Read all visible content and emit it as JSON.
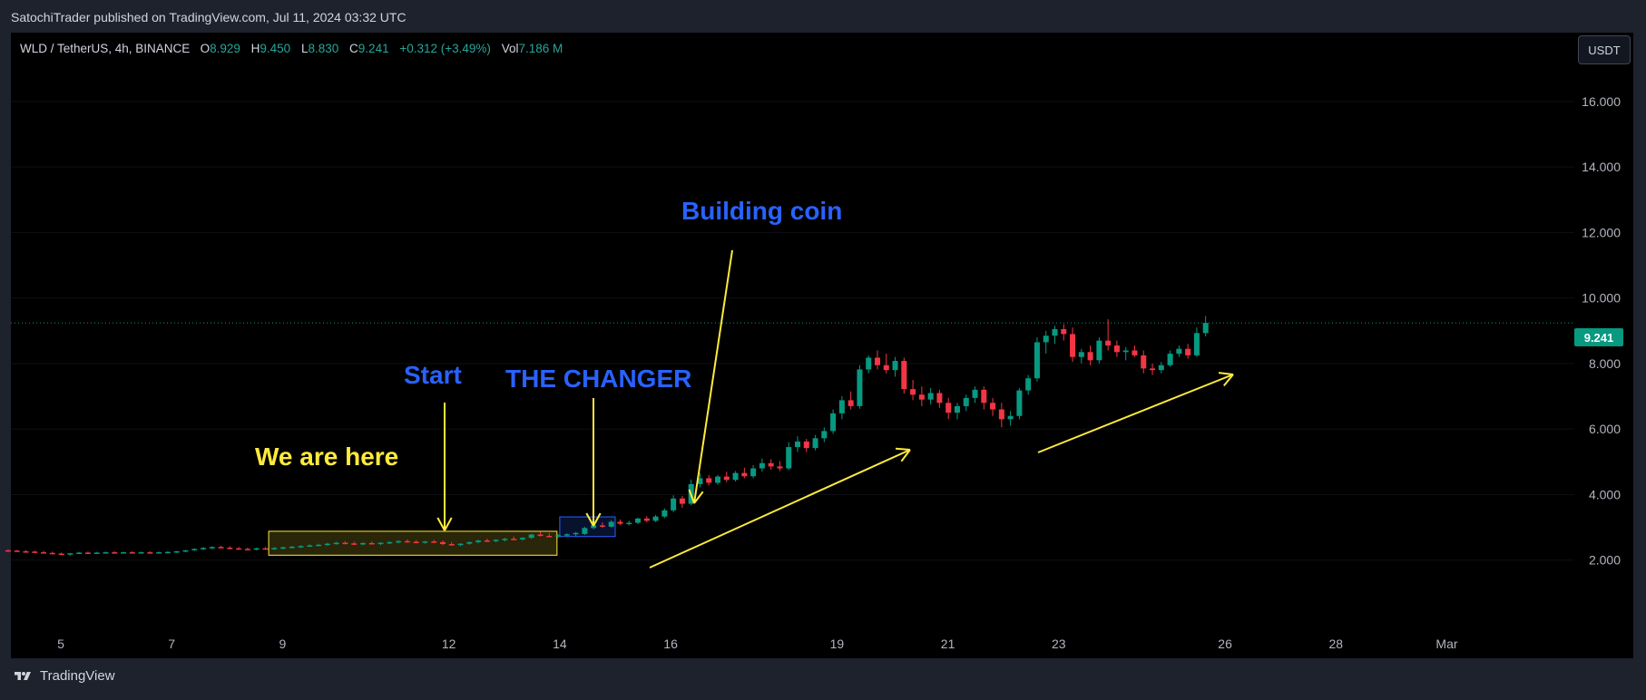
{
  "header": {
    "published": "SatochiTrader published on TradingView.com, Jul 11, 2024 03:32 UTC"
  },
  "legend": {
    "symbol": "WLD / TetherUS, 4h, BINANCE",
    "o_label": "O",
    "o_value": "8.929",
    "h_label": "H",
    "h_value": "9.450",
    "l_label": "L",
    "l_value": "8.830",
    "c_label": "C",
    "c_value": "9.241",
    "change": "+0.312 (+3.49%)",
    "vol_label": "Vol",
    "vol_value": "7.186 M"
  },
  "unit_button": "USDT",
  "last_price_tag": "9.241",
  "footer": {
    "brand": "TradingView"
  },
  "annotations": {
    "we_are_here": "We are here",
    "start": "Start",
    "the_changer": "THE CHANGER",
    "building_coin": "Building coin"
  },
  "colors": {
    "bull": "#089981",
    "bear": "#f23645",
    "annotation_yellow": "#ffeb3b",
    "annotation_blue": "#2962ff",
    "background": "#000000"
  },
  "chart_data": {
    "type": "candlestick",
    "symbol": "WLD / TetherUS",
    "timeframe": "4h",
    "exchange": "BINANCE",
    "y_ticks": [
      2,
      4,
      6,
      8,
      10,
      12,
      14,
      16
    ],
    "y_tick_labels": [
      "2.000",
      "4.000",
      "6.000",
      "8.000",
      "10.000",
      "12.000",
      "14.000",
      "16.000"
    ],
    "ylim": [
      0,
      18.1
    ],
    "x_tick_labels": [
      "5",
      "7",
      "9",
      "12",
      "14",
      "16",
      "19",
      "21",
      "23",
      "26",
      "28",
      "Mar"
    ],
    "x_tick_days": [
      5,
      7,
      9,
      12,
      14,
      16,
      19,
      21,
      23,
      26,
      28,
      30
    ],
    "xlim": [
      4.1,
      32.3
    ],
    "last_price": 9.241,
    "candles": [
      {
        "d": 4.05,
        "o": 2.3,
        "h": 2.33,
        "l": 2.26,
        "c": 2.29
      },
      {
        "d": 4.21,
        "o": 2.29,
        "h": 2.31,
        "l": 2.25,
        "c": 2.27
      },
      {
        "d": 4.37,
        "o": 2.27,
        "h": 2.3,
        "l": 2.23,
        "c": 2.26
      },
      {
        "d": 4.53,
        "o": 2.26,
        "h": 2.29,
        "l": 2.22,
        "c": 2.24
      },
      {
        "d": 4.69,
        "o": 2.24,
        "h": 2.28,
        "l": 2.2,
        "c": 2.22
      },
      {
        "d": 4.85,
        "o": 2.22,
        "h": 2.26,
        "l": 2.18,
        "c": 2.2
      },
      {
        "d": 5.01,
        "o": 2.2,
        "h": 2.23,
        "l": 2.16,
        "c": 2.18
      },
      {
        "d": 5.17,
        "o": 2.18,
        "h": 2.22,
        "l": 2.14,
        "c": 2.21
      },
      {
        "d": 5.33,
        "o": 2.21,
        "h": 2.25,
        "l": 2.18,
        "c": 2.23
      },
      {
        "d": 5.49,
        "o": 2.23,
        "h": 2.26,
        "l": 2.2,
        "c": 2.22
      },
      {
        "d": 5.65,
        "o": 2.22,
        "h": 2.25,
        "l": 2.19,
        "c": 2.23
      },
      {
        "d": 5.81,
        "o": 2.23,
        "h": 2.26,
        "l": 2.2,
        "c": 2.24
      },
      {
        "d": 5.97,
        "o": 2.24,
        "h": 2.27,
        "l": 2.21,
        "c": 2.23
      },
      {
        "d": 6.13,
        "o": 2.23,
        "h": 2.26,
        "l": 2.2,
        "c": 2.24
      },
      {
        "d": 6.29,
        "o": 2.24,
        "h": 2.27,
        "l": 2.21,
        "c": 2.23
      },
      {
        "d": 6.45,
        "o": 2.23,
        "h": 2.26,
        "l": 2.2,
        "c": 2.24
      },
      {
        "d": 6.61,
        "o": 2.24,
        "h": 2.27,
        "l": 2.21,
        "c": 2.23
      },
      {
        "d": 6.77,
        "o": 2.23,
        "h": 2.26,
        "l": 2.2,
        "c": 2.24
      },
      {
        "d": 6.93,
        "o": 2.24,
        "h": 2.27,
        "l": 2.21,
        "c": 2.25
      },
      {
        "d": 7.09,
        "o": 2.25,
        "h": 2.28,
        "l": 2.22,
        "c": 2.27
      },
      {
        "d": 7.25,
        "o": 2.27,
        "h": 2.31,
        "l": 2.24,
        "c": 2.3
      },
      {
        "d": 7.41,
        "o": 2.3,
        "h": 2.36,
        "l": 2.28,
        "c": 2.34
      },
      {
        "d": 7.57,
        "o": 2.34,
        "h": 2.4,
        "l": 2.31,
        "c": 2.37
      },
      {
        "d": 7.73,
        "o": 2.37,
        "h": 2.42,
        "l": 2.33,
        "c": 2.4
      },
      {
        "d": 7.89,
        "o": 2.4,
        "h": 2.44,
        "l": 2.36,
        "c": 2.38
      },
      {
        "d": 8.05,
        "o": 2.38,
        "h": 2.42,
        "l": 2.33,
        "c": 2.36
      },
      {
        "d": 8.21,
        "o": 2.36,
        "h": 2.4,
        "l": 2.32,
        "c": 2.34
      },
      {
        "d": 8.37,
        "o": 2.34,
        "h": 2.38,
        "l": 2.3,
        "c": 2.33
      },
      {
        "d": 8.53,
        "o": 2.33,
        "h": 2.38,
        "l": 2.3,
        "c": 2.36
      },
      {
        "d": 8.69,
        "o": 2.36,
        "h": 2.4,
        "l": 2.32,
        "c": 2.35
      },
      {
        "d": 8.85,
        "o": 2.35,
        "h": 2.4,
        "l": 2.31,
        "c": 2.37
      },
      {
        "d": 9.01,
        "o": 2.37,
        "h": 2.42,
        "l": 2.33,
        "c": 2.39
      },
      {
        "d": 9.17,
        "o": 2.39,
        "h": 2.43,
        "l": 2.35,
        "c": 2.41
      },
      {
        "d": 9.33,
        "o": 2.41,
        "h": 2.45,
        "l": 2.37,
        "c": 2.43
      },
      {
        "d": 9.49,
        "o": 2.43,
        "h": 2.48,
        "l": 2.4,
        "c": 2.45
      },
      {
        "d": 9.65,
        "o": 2.45,
        "h": 2.5,
        "l": 2.42,
        "c": 2.47
      },
      {
        "d": 9.81,
        "o": 2.47,
        "h": 2.53,
        "l": 2.44,
        "c": 2.5
      },
      {
        "d": 9.97,
        "o": 2.5,
        "h": 2.56,
        "l": 2.47,
        "c": 2.53
      },
      {
        "d": 10.13,
        "o": 2.53,
        "h": 2.58,
        "l": 2.48,
        "c": 2.51
      },
      {
        "d": 10.29,
        "o": 2.51,
        "h": 2.56,
        "l": 2.46,
        "c": 2.49
      },
      {
        "d": 10.45,
        "o": 2.49,
        "h": 2.55,
        "l": 2.45,
        "c": 2.52
      },
      {
        "d": 10.61,
        "o": 2.52,
        "h": 2.57,
        "l": 2.48,
        "c": 2.5
      },
      {
        "d": 10.77,
        "o": 2.5,
        "h": 2.55,
        "l": 2.46,
        "c": 2.53
      },
      {
        "d": 10.93,
        "o": 2.53,
        "h": 2.58,
        "l": 2.49,
        "c": 2.55
      },
      {
        "d": 11.09,
        "o": 2.55,
        "h": 2.61,
        "l": 2.51,
        "c": 2.58
      },
      {
        "d": 11.25,
        "o": 2.58,
        "h": 2.63,
        "l": 2.53,
        "c": 2.56
      },
      {
        "d": 11.41,
        "o": 2.56,
        "h": 2.61,
        "l": 2.51,
        "c": 2.54
      },
      {
        "d": 11.57,
        "o": 2.54,
        "h": 2.59,
        "l": 2.5,
        "c": 2.57
      },
      {
        "d": 11.73,
        "o": 2.57,
        "h": 2.62,
        "l": 2.52,
        "c": 2.55
      },
      {
        "d": 11.89,
        "o": 2.55,
        "h": 2.6,
        "l": 2.46,
        "c": 2.49
      },
      {
        "d": 12.05,
        "o": 2.49,
        "h": 2.55,
        "l": 2.44,
        "c": 2.46
      },
      {
        "d": 12.21,
        "o": 2.46,
        "h": 2.52,
        "l": 2.42,
        "c": 2.5
      },
      {
        "d": 12.37,
        "o": 2.5,
        "h": 2.57,
        "l": 2.47,
        "c": 2.55
      },
      {
        "d": 12.53,
        "o": 2.55,
        "h": 2.62,
        "l": 2.51,
        "c": 2.6
      },
      {
        "d": 12.69,
        "o": 2.6,
        "h": 2.66,
        "l": 2.55,
        "c": 2.58
      },
      {
        "d": 12.85,
        "o": 2.58,
        "h": 2.64,
        "l": 2.54,
        "c": 2.62
      },
      {
        "d": 13.01,
        "o": 2.62,
        "h": 2.68,
        "l": 2.57,
        "c": 2.65
      },
      {
        "d": 13.17,
        "o": 2.65,
        "h": 2.72,
        "l": 2.61,
        "c": 2.63
      },
      {
        "d": 13.33,
        "o": 2.63,
        "h": 2.7,
        "l": 2.59,
        "c": 2.68
      },
      {
        "d": 13.49,
        "o": 2.68,
        "h": 2.8,
        "l": 2.65,
        "c": 2.78
      },
      {
        "d": 13.65,
        "o": 2.78,
        "h": 2.86,
        "l": 2.72,
        "c": 2.74
      },
      {
        "d": 13.81,
        "o": 2.74,
        "h": 2.82,
        "l": 2.7,
        "c": 2.72
      },
      {
        "d": 13.97,
        "o": 2.72,
        "h": 2.8,
        "l": 2.68,
        "c": 2.76
      },
      {
        "d": 14.13,
        "o": 2.76,
        "h": 2.82,
        "l": 2.71,
        "c": 2.79
      },
      {
        "d": 14.29,
        "o": 2.79,
        "h": 2.86,
        "l": 2.74,
        "c": 2.83
      },
      {
        "d": 14.45,
        "o": 2.8,
        "h": 3.02,
        "l": 2.77,
        "c": 2.98
      },
      {
        "d": 14.61,
        "o": 2.98,
        "h": 3.12,
        "l": 2.94,
        "c": 3.06
      },
      {
        "d": 14.77,
        "o": 3.06,
        "h": 3.15,
        "l": 2.98,
        "c": 3.02
      },
      {
        "d": 14.93,
        "o": 3.02,
        "h": 3.22,
        "l": 3.0,
        "c": 3.17
      },
      {
        "d": 15.09,
        "o": 3.17,
        "h": 3.24,
        "l": 3.07,
        "c": 3.11
      },
      {
        "d": 15.25,
        "o": 3.11,
        "h": 3.2,
        "l": 3.06,
        "c": 3.14
      },
      {
        "d": 15.41,
        "o": 3.14,
        "h": 3.3,
        "l": 3.1,
        "c": 3.27
      },
      {
        "d": 15.57,
        "o": 3.27,
        "h": 3.34,
        "l": 3.15,
        "c": 3.2
      },
      {
        "d": 15.73,
        "o": 3.2,
        "h": 3.38,
        "l": 3.16,
        "c": 3.33
      },
      {
        "d": 15.89,
        "o": 3.33,
        "h": 3.58,
        "l": 3.28,
        "c": 3.52
      },
      {
        "d": 16.05,
        "o": 3.52,
        "h": 3.98,
        "l": 3.46,
        "c": 3.88
      },
      {
        "d": 16.21,
        "o": 3.88,
        "h": 3.96,
        "l": 3.6,
        "c": 3.72
      },
      {
        "d": 16.37,
        "o": 3.72,
        "h": 4.46,
        "l": 3.68,
        "c": 4.32
      },
      {
        "d": 16.53,
        "o": 4.32,
        "h": 4.66,
        "l": 4.22,
        "c": 4.5
      },
      {
        "d": 16.69,
        "o": 4.5,
        "h": 4.6,
        "l": 4.28,
        "c": 4.36
      },
      {
        "d": 16.85,
        "o": 4.36,
        "h": 4.6,
        "l": 4.3,
        "c": 4.55
      },
      {
        "d": 17.01,
        "o": 4.55,
        "h": 4.7,
        "l": 4.38,
        "c": 4.45
      },
      {
        "d": 17.17,
        "o": 4.45,
        "h": 4.72,
        "l": 4.4,
        "c": 4.66
      },
      {
        "d": 17.33,
        "o": 4.66,
        "h": 4.82,
        "l": 4.5,
        "c": 4.56
      },
      {
        "d": 17.49,
        "o": 4.56,
        "h": 4.9,
        "l": 4.5,
        "c": 4.8
      },
      {
        "d": 17.65,
        "o": 4.8,
        "h": 5.1,
        "l": 4.7,
        "c": 4.96
      },
      {
        "d": 17.81,
        "o": 4.96,
        "h": 5.08,
        "l": 4.76,
        "c": 4.86
      },
      {
        "d": 17.97,
        "o": 4.86,
        "h": 5.02,
        "l": 4.72,
        "c": 4.8
      },
      {
        "d": 18.13,
        "o": 4.8,
        "h": 5.6,
        "l": 4.75,
        "c": 5.45
      },
      {
        "d": 18.29,
        "o": 5.45,
        "h": 5.78,
        "l": 5.3,
        "c": 5.62
      },
      {
        "d": 18.45,
        "o": 5.62,
        "h": 5.7,
        "l": 5.3,
        "c": 5.42
      },
      {
        "d": 18.61,
        "o": 5.42,
        "h": 5.82,
        "l": 5.35,
        "c": 5.72
      },
      {
        "d": 18.77,
        "o": 5.72,
        "h": 6.05,
        "l": 5.6,
        "c": 5.94
      },
      {
        "d": 18.93,
        "o": 5.94,
        "h": 6.6,
        "l": 5.85,
        "c": 6.48
      },
      {
        "d": 19.09,
        "o": 6.48,
        "h": 7.0,
        "l": 6.3,
        "c": 6.88
      },
      {
        "d": 19.25,
        "o": 6.88,
        "h": 7.15,
        "l": 6.6,
        "c": 6.7
      },
      {
        "d": 19.41,
        "o": 6.7,
        "h": 7.95,
        "l": 6.62,
        "c": 7.82
      },
      {
        "d": 19.57,
        "o": 7.82,
        "h": 8.25,
        "l": 7.7,
        "c": 8.18
      },
      {
        "d": 19.73,
        "o": 8.18,
        "h": 8.4,
        "l": 7.82,
        "c": 7.95
      },
      {
        "d": 19.89,
        "o": 7.95,
        "h": 8.3,
        "l": 7.7,
        "c": 7.8
      },
      {
        "d": 20.05,
        "o": 7.8,
        "h": 8.2,
        "l": 7.6,
        "c": 8.08
      },
      {
        "d": 20.21,
        "o": 8.08,
        "h": 8.18,
        "l": 7.08,
        "c": 7.22
      },
      {
        "d": 20.37,
        "o": 7.22,
        "h": 7.5,
        "l": 6.88,
        "c": 7.05
      },
      {
        "d": 20.53,
        "o": 7.05,
        "h": 7.3,
        "l": 6.7,
        "c": 6.9
      },
      {
        "d": 20.69,
        "o": 6.9,
        "h": 7.25,
        "l": 6.75,
        "c": 7.1
      },
      {
        "d": 20.85,
        "o": 7.1,
        "h": 7.2,
        "l": 6.65,
        "c": 6.8
      },
      {
        "d": 21.01,
        "o": 6.8,
        "h": 6.95,
        "l": 6.3,
        "c": 6.5
      },
      {
        "d": 21.17,
        "o": 6.5,
        "h": 6.8,
        "l": 6.3,
        "c": 6.7
      },
      {
        "d": 21.33,
        "o": 6.7,
        "h": 7.05,
        "l": 6.55,
        "c": 6.95
      },
      {
        "d": 21.49,
        "o": 6.95,
        "h": 7.3,
        "l": 6.8,
        "c": 7.2
      },
      {
        "d": 21.65,
        "o": 7.2,
        "h": 7.3,
        "l": 6.6,
        "c": 6.8
      },
      {
        "d": 21.81,
        "o": 6.8,
        "h": 6.95,
        "l": 6.4,
        "c": 6.6
      },
      {
        "d": 21.97,
        "o": 6.6,
        "h": 6.8,
        "l": 6.05,
        "c": 6.3
      },
      {
        "d": 22.13,
        "o": 6.3,
        "h": 6.55,
        "l": 6.1,
        "c": 6.4
      },
      {
        "d": 22.29,
        "o": 6.4,
        "h": 7.25,
        "l": 6.3,
        "c": 7.18
      },
      {
        "d": 22.45,
        "o": 7.18,
        "h": 7.65,
        "l": 7.05,
        "c": 7.55
      },
      {
        "d": 22.61,
        "o": 7.55,
        "h": 8.8,
        "l": 7.45,
        "c": 8.65
      },
      {
        "d": 22.77,
        "o": 8.65,
        "h": 9.0,
        "l": 8.3,
        "c": 8.85
      },
      {
        "d": 22.93,
        "o": 8.85,
        "h": 9.15,
        "l": 8.6,
        "c": 9.05
      },
      {
        "d": 23.09,
        "o": 9.05,
        "h": 9.2,
        "l": 8.7,
        "c": 8.9
      },
      {
        "d": 23.25,
        "o": 8.9,
        "h": 9.1,
        "l": 8.05,
        "c": 8.2
      },
      {
        "d": 23.41,
        "o": 8.2,
        "h": 8.45,
        "l": 8.0,
        "c": 8.35
      },
      {
        "d": 23.57,
        "o": 8.35,
        "h": 8.55,
        "l": 7.95,
        "c": 8.1
      },
      {
        "d": 23.73,
        "o": 8.1,
        "h": 8.8,
        "l": 8.0,
        "c": 8.7
      },
      {
        "d": 23.89,
        "o": 8.7,
        "h": 9.35,
        "l": 8.4,
        "c": 8.55
      },
      {
        "d": 24.05,
        "o": 8.55,
        "h": 8.7,
        "l": 8.2,
        "c": 8.35
      },
      {
        "d": 24.21,
        "o": 8.35,
        "h": 8.5,
        "l": 8.1,
        "c": 8.4
      },
      {
        "d": 24.37,
        "o": 8.4,
        "h": 8.55,
        "l": 8.2,
        "c": 8.25
      },
      {
        "d": 24.53,
        "o": 8.25,
        "h": 8.4,
        "l": 7.7,
        "c": 7.85
      },
      {
        "d": 24.69,
        "o": 7.85,
        "h": 8.0,
        "l": 7.65,
        "c": 7.8
      },
      {
        "d": 24.85,
        "o": 7.8,
        "h": 8.05,
        "l": 7.7,
        "c": 7.95
      },
      {
        "d": 25.01,
        "o": 7.95,
        "h": 8.4,
        "l": 7.9,
        "c": 8.3
      },
      {
        "d": 25.17,
        "o": 8.3,
        "h": 8.55,
        "l": 8.2,
        "c": 8.45
      },
      {
        "d": 25.33,
        "o": 8.45,
        "h": 8.6,
        "l": 8.15,
        "c": 8.25
      },
      {
        "d": 25.49,
        "o": 8.25,
        "h": 9.1,
        "l": 8.2,
        "c": 8.93
      },
      {
        "d": 25.65,
        "o": 8.93,
        "h": 9.45,
        "l": 8.83,
        "c": 9.241
      }
    ],
    "annotations": [
      {
        "text": "We are here",
        "color": "yellow"
      },
      {
        "text": "Start",
        "color": "blue"
      },
      {
        "text": "THE CHANGER",
        "color": "blue"
      },
      {
        "text": "Building coin",
        "color": "blue"
      }
    ]
  }
}
